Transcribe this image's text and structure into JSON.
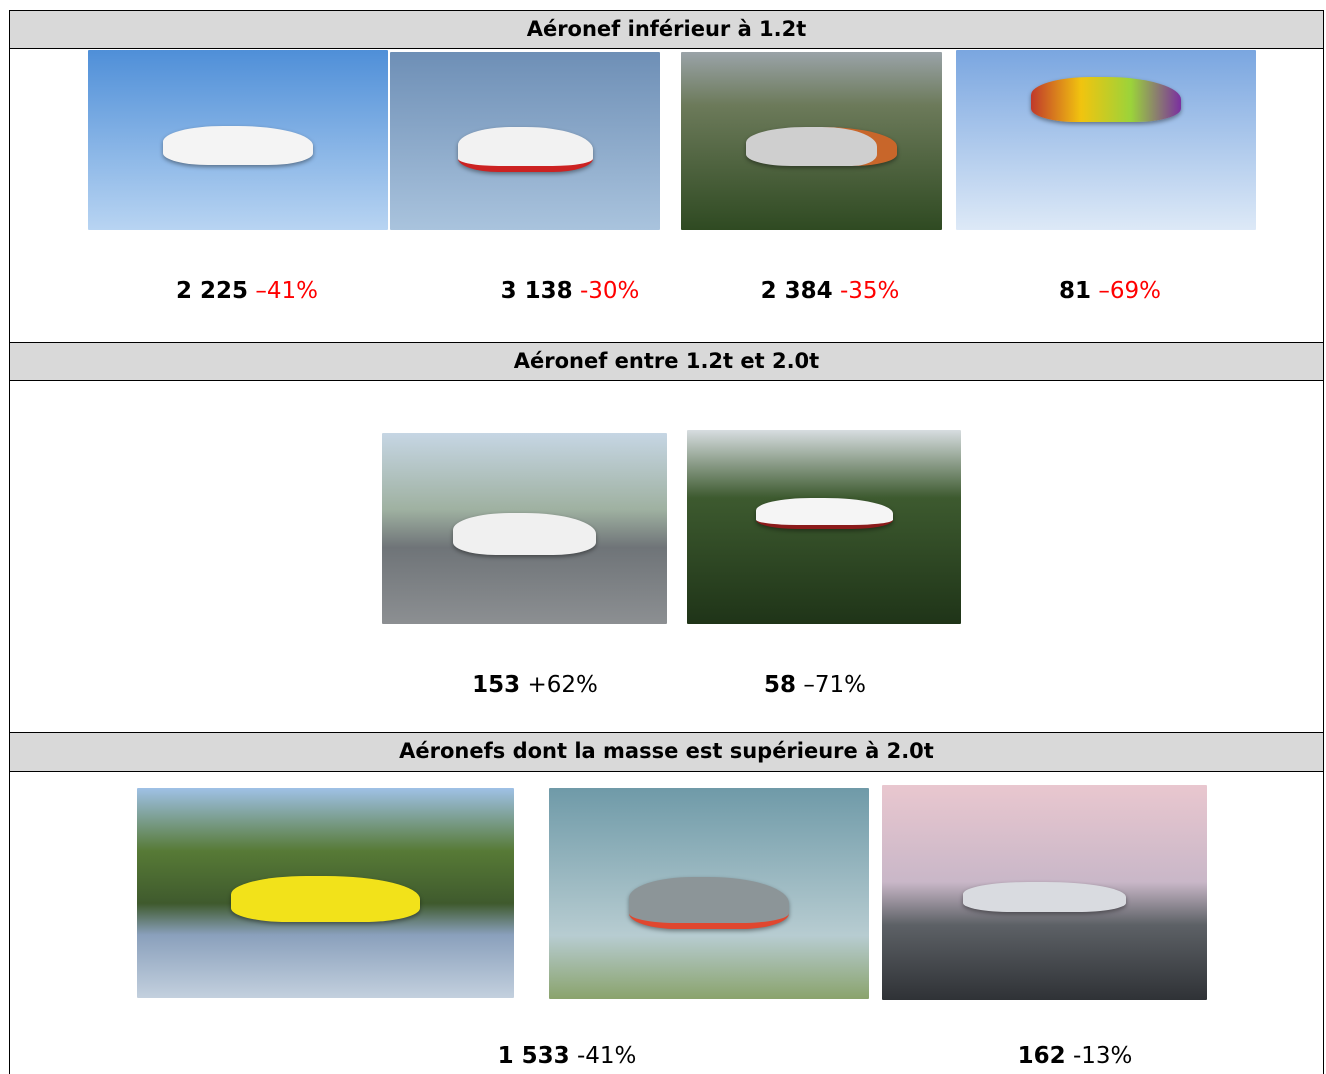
{
  "sections": [
    {
      "title": "Aéronef inférieur à 1.2t",
      "change_color": "#ff0000",
      "items": [
        {
          "count": "2 225",
          "change": "–41%"
        },
        {
          "count": "3 138",
          "change": "-30%"
        },
        {
          "count": "2 384",
          "change": "-35%"
        },
        {
          "count": "81",
          "change": "–69%"
        }
      ]
    },
    {
      "title": "Aéronef entre 1.2t et 2.0t",
      "change_color": "#000000",
      "items": [
        {
          "count": "153",
          "change": "+62%"
        },
        {
          "count": "58",
          "change": "–71%"
        }
      ]
    },
    {
      "title": "Aéronefs dont la masse est supérieure à 2.0t",
      "change_color": "#000000",
      "items": [
        {
          "count": "1 533",
          "change": "-41%"
        },
        {
          "count": "162",
          "change": "-13%"
        }
      ]
    }
  ]
}
